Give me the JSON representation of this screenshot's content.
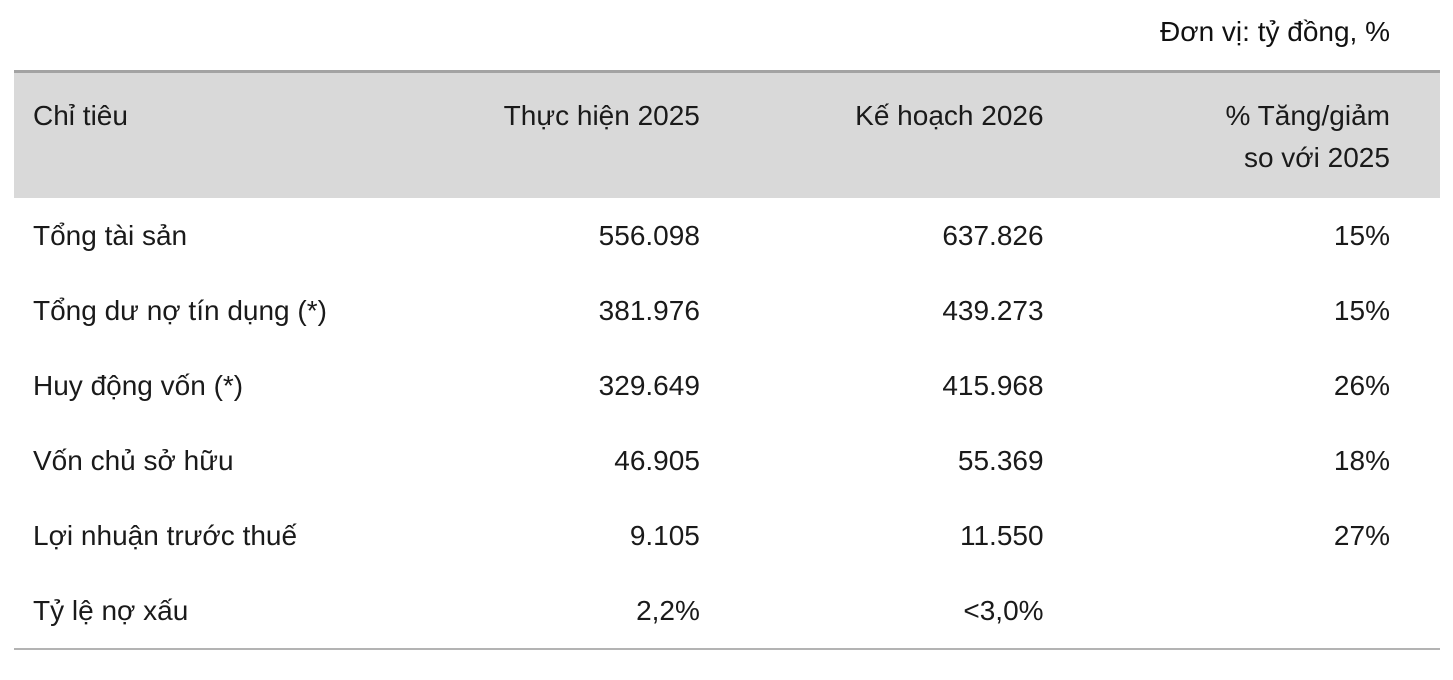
{
  "unit_note": "Đơn vị: tỷ đồng, %",
  "colors": {
    "header_bg": "#d9d9d9",
    "header_top_border": "#a3a3a3",
    "table_bottom_border": "#b3b3b3",
    "text": "#1a1a1a"
  },
  "table": {
    "header": {
      "col1": "Chỉ tiêu",
      "col2": "Thực hiện 2025",
      "col3": "Kế hoạch 2026",
      "col4_line1": "% Tăng/giảm",
      "col4_line2": "so với 2025"
    },
    "rows": [
      {
        "label": "Tổng tài sản",
        "actual_2025": "556.098",
        "plan_2026": "637.826",
        "change_pct": "15%"
      },
      {
        "label": "Tổng dư nợ tín dụng (*)",
        "actual_2025": "381.976",
        "plan_2026": "439.273",
        "change_pct": "15%"
      },
      {
        "label": "Huy động vốn (*)",
        "actual_2025": "329.649",
        "plan_2026": "415.968",
        "change_pct": "26%"
      },
      {
        "label": "Vốn chủ sở hữu",
        "actual_2025": "46.905",
        "plan_2026": "55.369",
        "change_pct": "18%"
      },
      {
        "label": "Lợi nhuận trước thuế",
        "actual_2025": "9.105",
        "plan_2026": "11.550",
        "change_pct": "27%"
      },
      {
        "label": "Tỷ lệ nợ xấu",
        "actual_2025": "2,2%",
        "plan_2026": "<3,0%",
        "change_pct": ""
      }
    ]
  }
}
